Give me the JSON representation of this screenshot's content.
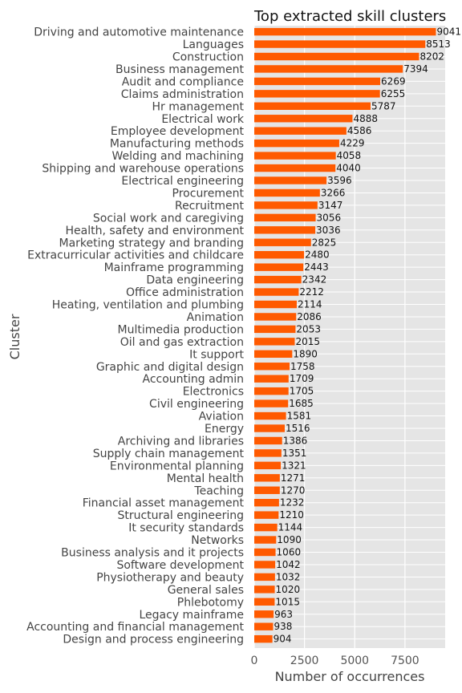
{
  "chart_data": {
    "type": "bar",
    "orientation": "horizontal",
    "title": "Top extracted skill clusters",
    "xlabel": "Number of occurrences",
    "ylabel": "Cluster",
    "xlim": [
      0,
      9500
    ],
    "xticks": [
      0,
      2500,
      5000,
      7500
    ],
    "xtick_labels": [
      "0",
      "2500",
      "5000",
      "7500"
    ],
    "grid": true,
    "bar_color": "#ff5a00",
    "background_color": "#e5e5e5",
    "categories": [
      "Driving and automotive maintenance",
      "Languages",
      "Construction",
      "Business management",
      "Audit and compliance",
      "Claims administration",
      "Hr management",
      "Electrical work",
      "Employee development",
      "Manufacturing methods",
      "Welding and machining",
      "Shipping and warehouse operations",
      "Electrical engineering",
      "Procurement",
      "Recruitment",
      "Social work and caregiving",
      "Health, safety and environment",
      "Marketing strategy and branding",
      "Extracurricular activities and childcare",
      "Mainframe programming",
      "Data engineering",
      "Office administration",
      "Heating, ventilation and plumbing",
      "Animation",
      "Multimedia production",
      "Oil and gas extraction",
      "It support",
      "Graphic and digital design",
      "Accounting admin",
      "Electronics",
      "Civil engineering",
      "Aviation",
      "Energy",
      "Archiving and libraries",
      "Supply chain management",
      "Environmental planning",
      "Mental health",
      "Teaching",
      "Financial asset management",
      "Structural engineering",
      "It security standards",
      "Networks",
      "Business analysis and it projects",
      "Software development",
      "Physiotherapy and beauty",
      "General sales",
      "Phlebotomy",
      "Legacy mainframe",
      "Accounting and financial management",
      "Design and process engineering"
    ],
    "values": [
      9041,
      8513,
      8202,
      7394,
      6269,
      6255,
      5787,
      4888,
      4586,
      4229,
      4058,
      4040,
      3596,
      3266,
      3147,
      3056,
      3036,
      2825,
      2480,
      2443,
      2342,
      2212,
      2114,
      2086,
      2053,
      2015,
      1890,
      1758,
      1709,
      1705,
      1685,
      1581,
      1516,
      1386,
      1351,
      1321,
      1271,
      1270,
      1232,
      1210,
      1144,
      1090,
      1060,
      1042,
      1032,
      1020,
      1015,
      963,
      938,
      904
    ]
  }
}
